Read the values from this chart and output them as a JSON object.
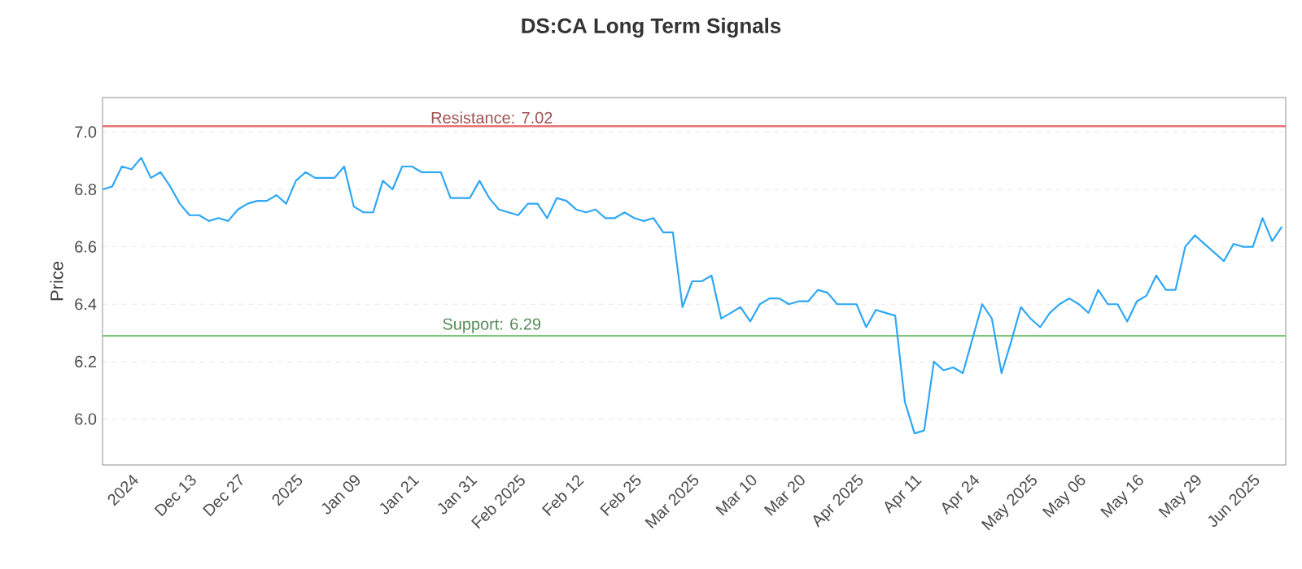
{
  "chart_data": {
    "type": "line",
    "title": "DS:CA Long Term Signals",
    "ylabel": "Price",
    "categories": [
      null,
      null,
      null,
      "2024",
      null,
      null,
      null,
      null,
      null,
      "Dec 13",
      null,
      null,
      null,
      null,
      "Dec 27",
      null,
      null,
      null,
      null,
      null,
      "2025",
      null,
      null,
      null,
      null,
      null,
      "Jan 09",
      null,
      null,
      null,
      null,
      null,
      "Jan 21",
      null,
      null,
      null,
      null,
      null,
      "Jan 31",
      null,
      null,
      null,
      null,
      "Feb 2025",
      null,
      null,
      null,
      null,
      null,
      "Feb 12",
      null,
      null,
      null,
      null,
      null,
      "Feb 25",
      null,
      null,
      null,
      null,
      null,
      "Mar 2025",
      null,
      null,
      null,
      null,
      null,
      "Mar 10",
      null,
      null,
      null,
      null,
      "Mar 20",
      null,
      null,
      null,
      null,
      null,
      "Apr 2025",
      null,
      null,
      null,
      null,
      null,
      "Apr 11",
      null,
      null,
      null,
      null,
      null,
      "Apr 24",
      null,
      null,
      null,
      null,
      null,
      "May 2025",
      null,
      null,
      null,
      null,
      "May 06",
      null,
      null,
      null,
      null,
      null,
      "May 16",
      null,
      null,
      null,
      null,
      null,
      "May 29",
      null,
      null,
      null,
      null,
      null,
      "Jun 2025",
      null,
      null,
      null
    ],
    "series": [
      {
        "color": "#2ea7f5",
        "values": [
          6.8,
          6.81,
          6.88,
          6.87,
          6.91,
          6.84,
          6.86,
          6.81,
          6.75,
          6.71,
          6.71,
          6.69,
          6.7,
          6.69,
          6.73,
          6.75,
          6.76,
          6.76,
          6.78,
          6.75,
          6.83,
          6.86,
          6.84,
          6.84,
          6.84,
          6.88,
          6.74,
          6.72,
          6.72,
          6.83,
          6.8,
          6.88,
          6.88,
          6.86,
          6.86,
          6.86,
          6.77,
          6.77,
          6.77,
          6.83,
          6.77,
          6.73,
          6.72,
          6.71,
          6.75,
          6.75,
          6.7,
          6.77,
          6.76,
          6.73,
          6.72,
          6.73,
          6.7,
          6.7,
          6.72,
          6.7,
          6.69,
          6.7,
          6.65,
          6.65,
          6.39,
          6.48,
          6.48,
          6.5,
          6.35,
          6.37,
          6.39,
          6.34,
          6.4,
          6.42,
          6.42,
          6.4,
          6.41,
          6.41,
          6.45,
          6.44,
          6.4,
          6.4,
          6.4,
          6.32,
          6.38,
          6.37,
          6.36,
          6.06,
          5.95,
          5.96,
          6.2,
          6.17,
          6.18,
          6.16,
          6.28,
          6.4,
          6.35,
          6.16,
          6.27,
          6.39,
          6.35,
          6.32,
          6.37,
          6.4,
          6.42,
          6.4,
          6.37,
          6.45,
          6.4,
          6.4,
          6.34,
          6.41,
          6.43,
          6.5,
          6.45,
          6.45,
          6.6,
          6.64,
          6.61,
          6.58,
          6.55,
          6.61,
          6.6,
          6.6,
          6.7,
          6.62,
          6.67
        ]
      }
    ],
    "ylim": [
      5.84,
      7.12
    ],
    "yticks": [
      {
        "value": 6.0,
        "label": "6.0"
      },
      {
        "value": 6.2,
        "label": "6.2"
      },
      {
        "value": 6.4,
        "label": "6.4"
      },
      {
        "value": 6.6,
        "label": "6.6"
      },
      {
        "value": 6.8,
        "label": "6.8"
      },
      {
        "value": 7.0,
        "label": "7.0"
      }
    ],
    "grid": "y",
    "ref_lines": [
      {
        "axis": "y",
        "value": 7.02,
        "label": "Resistance: 7.02",
        "color": "#e57373"
      },
      {
        "axis": "y",
        "value": 6.29,
        "label": "Support: 6.29",
        "color": "#7cc67c"
      }
    ]
  }
}
